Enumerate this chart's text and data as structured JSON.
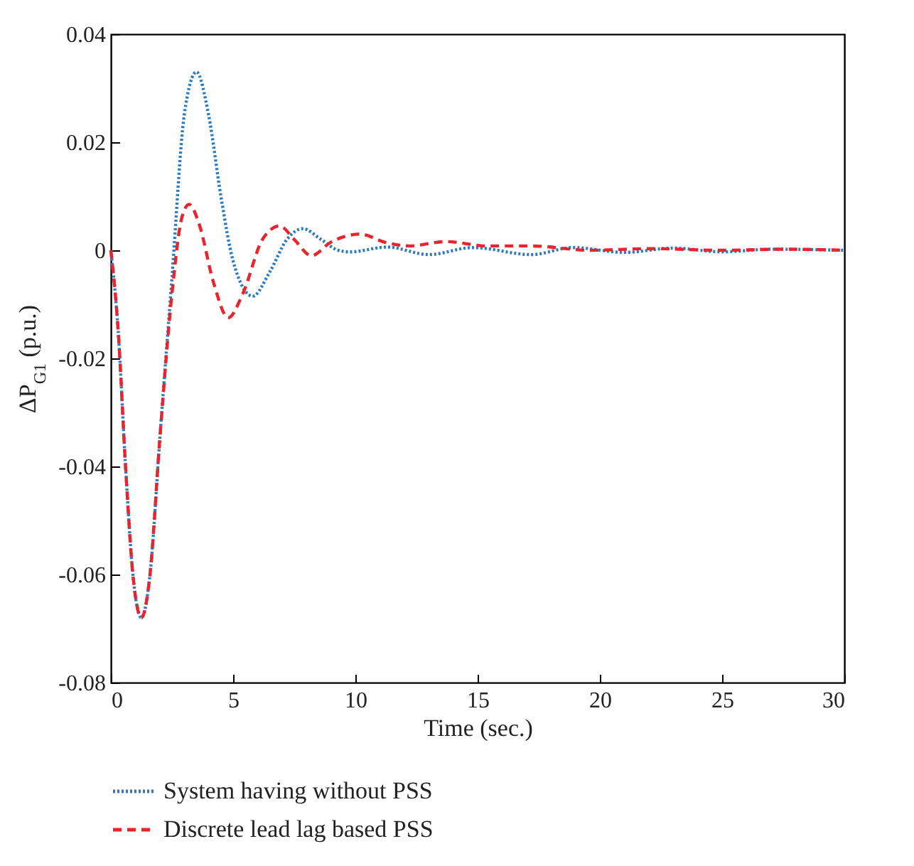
{
  "chart_data": {
    "type": "line",
    "xlabel": "Time (sec.)",
    "ylabel": "ΔP$_{G1}$ (p.u.)",
    "xlim": [
      0,
      30
    ],
    "xticks": [
      0,
      5,
      10,
      15,
      20,
      25,
      30
    ],
    "ylim": [
      -0.08,
      0.04
    ],
    "yticks": [
      -0.08,
      -0.06,
      -0.04,
      -0.02,
      0,
      0.02,
      0.04
    ],
    "grid": false,
    "legend": "bottom",
    "marker": "none",
    "series": [
      {
        "name": "System having without PSS",
        "color": "#2b7bc0",
        "line_style": "dotted",
        "x": [
          0,
          0.3,
          0.6,
          0.9,
          1.25,
          1.6,
          2,
          2.5,
          3,
          3.5,
          4,
          4.5,
          5,
          5.8,
          6.5,
          7.2,
          7.85,
          8.6,
          9.3,
          9.8,
          11.3,
          13,
          14.8,
          17.2,
          18.9,
          21,
          23,
          25,
          27,
          30
        ],
        "values": [
          0,
          -0.015,
          -0.04,
          -0.06,
          -0.068,
          -0.06,
          -0.035,
          -0.005,
          0.025,
          0.033,
          0.025,
          0.01,
          -0.002,
          -0.0085,
          -0.004,
          0.002,
          0.004,
          0.002,
          0,
          -0.0003,
          0.0006,
          -0.0008,
          0.0005,
          -0.0008,
          0.0005,
          -0.0004,
          0.0004,
          -0.0003,
          0.0002,
          0
        ]
      },
      {
        "name": "Discrete lead lag based PSS",
        "color": "#e8242c",
        "line_style": "dashed",
        "x": [
          0,
          0.3,
          0.6,
          0.9,
          1.25,
          1.6,
          2,
          2.5,
          2.9,
          3.2,
          3.6,
          4.2,
          4.8,
          5.4,
          6.2,
          6.9,
          7.5,
          8.2,
          9,
          10.2,
          11.2,
          12.2,
          13.7,
          15.4,
          17.2,
          19.6,
          22,
          25,
          27.5,
          30
        ],
        "values": [
          0,
          -0.015,
          -0.04,
          -0.06,
          -0.068,
          -0.06,
          -0.035,
          -0.008,
          0.006,
          0.0085,
          0.005,
          -0.006,
          -0.0125,
          -0.008,
          0.002,
          0.0045,
          0.002,
          -0.001,
          0.0015,
          0.003,
          0.0015,
          0.0008,
          0.0016,
          0.0008,
          0.0008,
          0,
          0.0003,
          0,
          0.0002,
          0
        ]
      }
    ]
  }
}
